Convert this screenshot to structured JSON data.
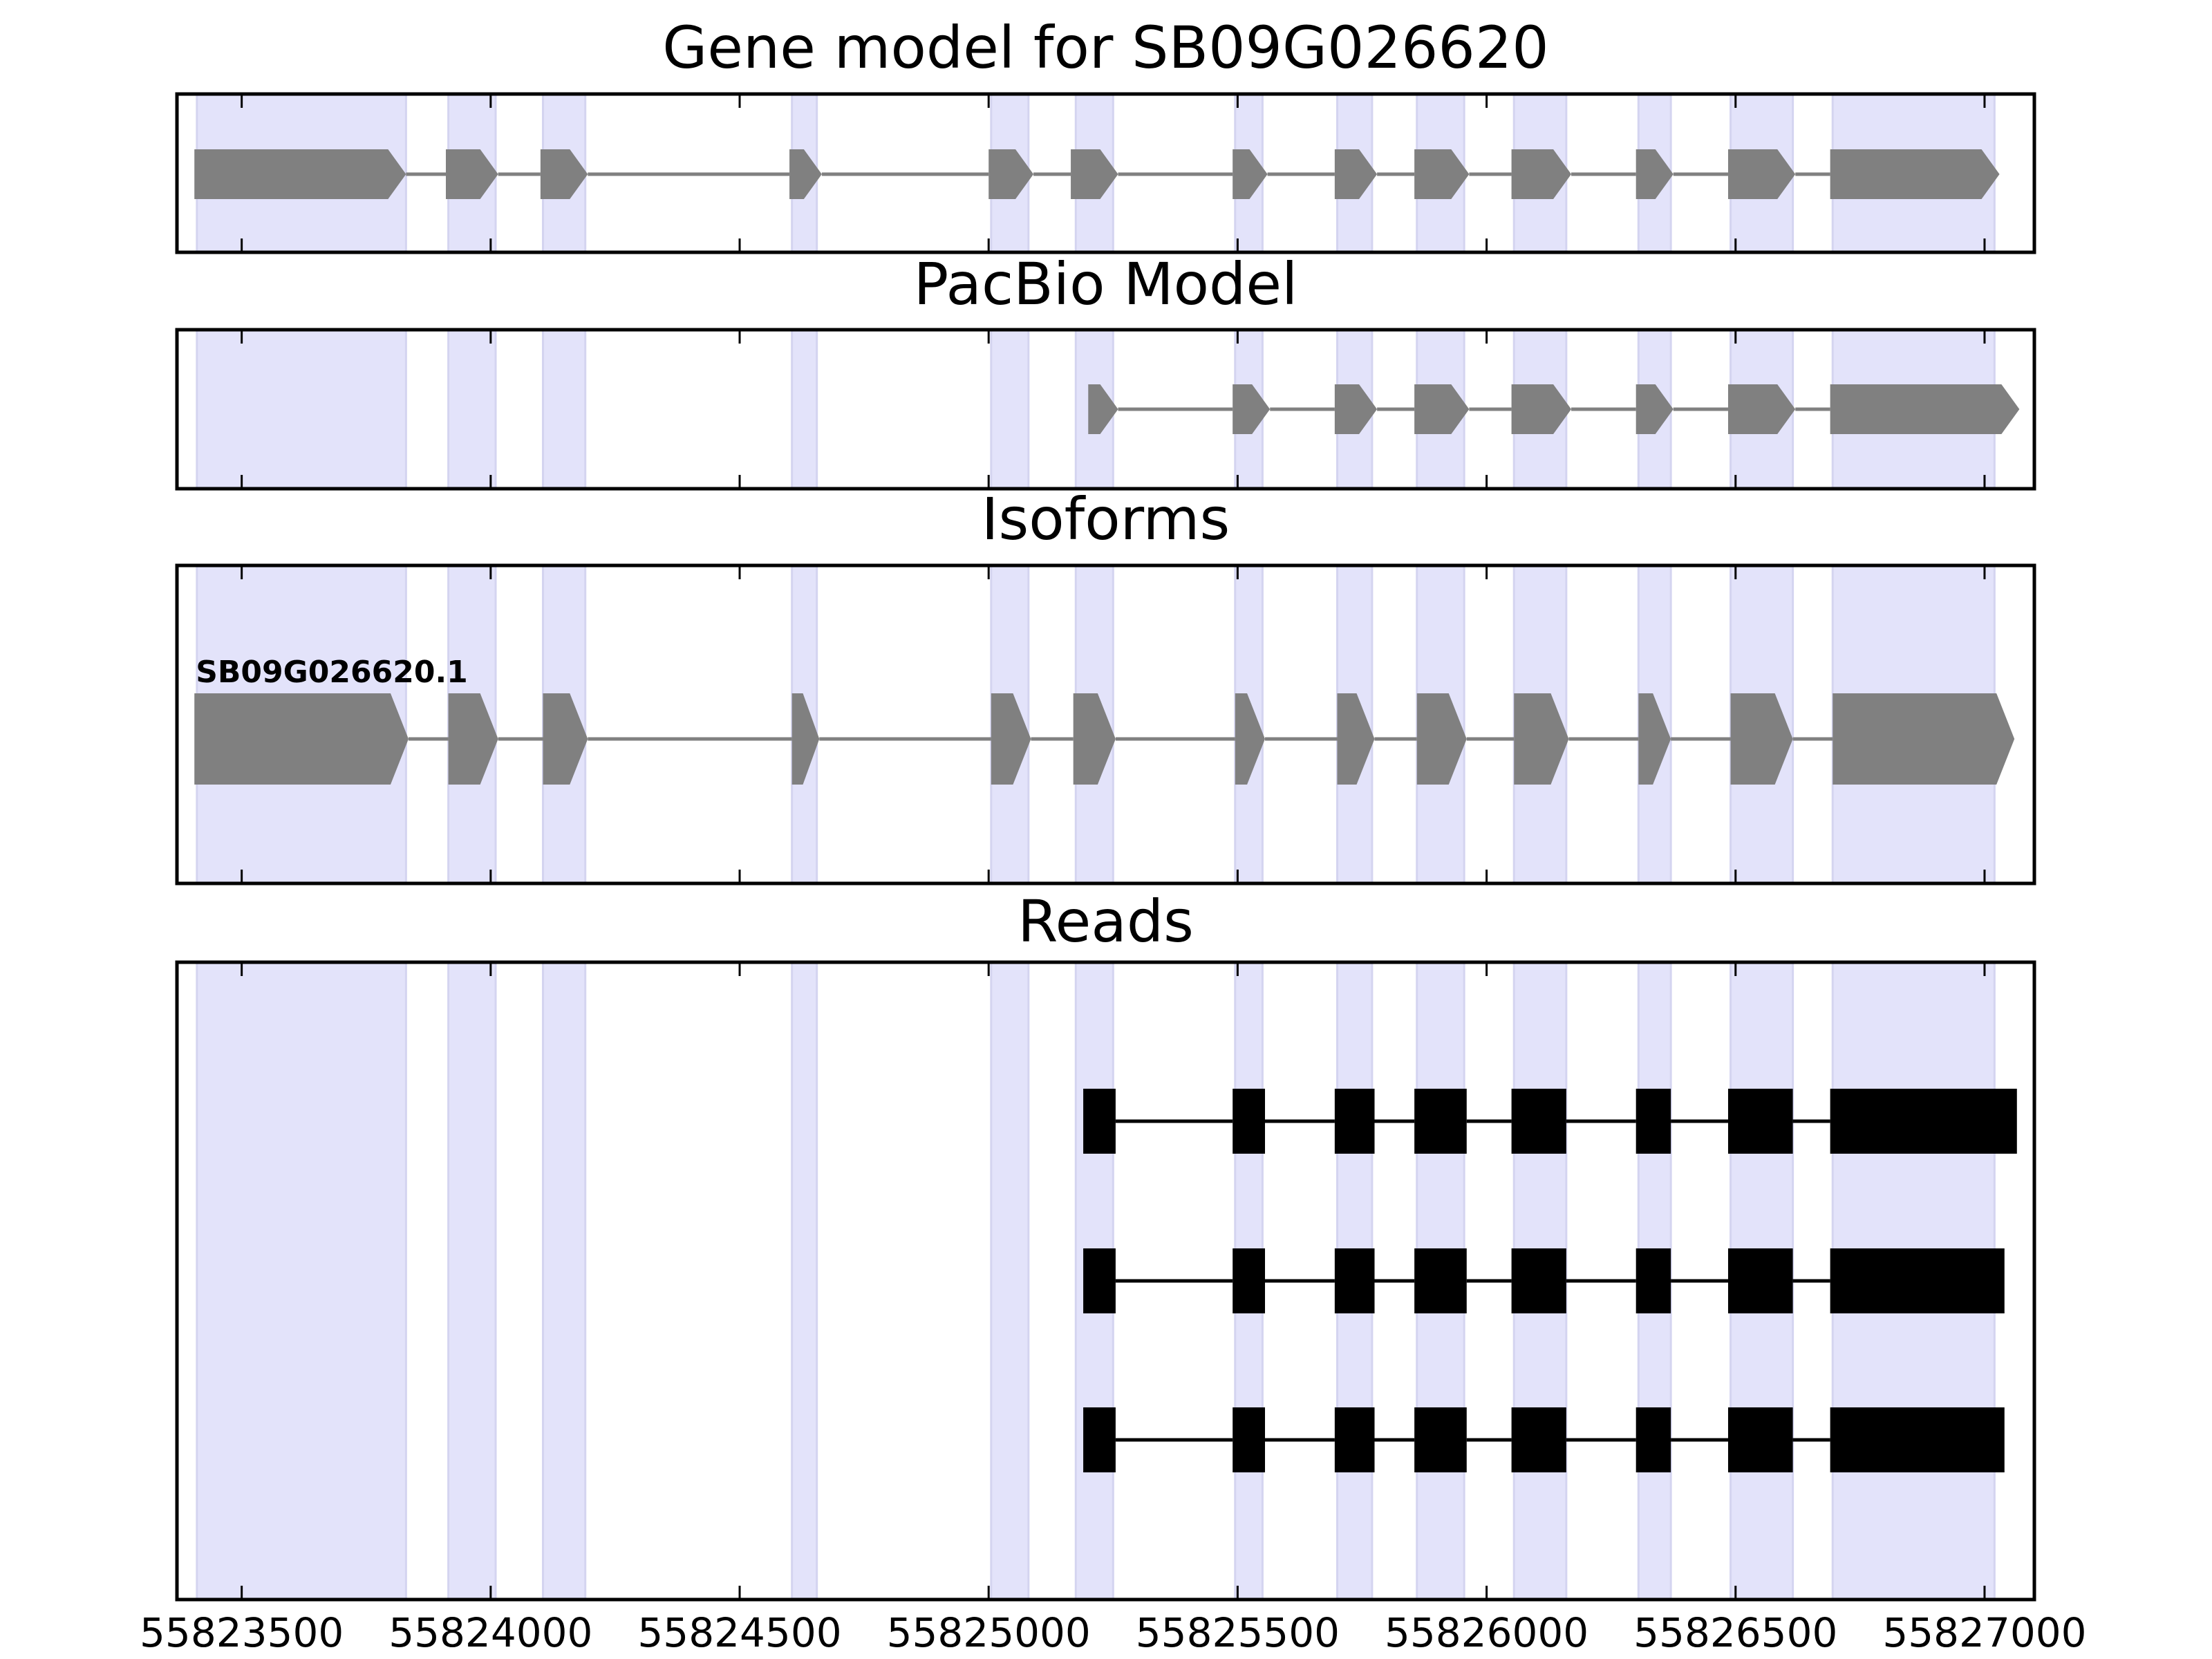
{
  "chart_data": {
    "type": "gene-track",
    "xlim": [
      55823370,
      55827100
    ],
    "xticks": [
      55823500,
      55824000,
      55824500,
      55825000,
      55825500,
      55826000,
      55826500,
      55827000
    ],
    "xtick_labels": [
      "55823500",
      "55824000",
      "55824500",
      "55825000",
      "55825500",
      "55826000",
      "55826500",
      "55827000"
    ],
    "highlight_color": "#e3e3fa",
    "highlight_regions": [
      [
        55823410,
        55823830
      ],
      [
        55823915,
        55824010
      ],
      [
        55824105,
        55824190
      ],
      [
        55824605,
        55824655
      ],
      [
        55825005,
        55825080
      ],
      [
        55825175,
        55825250
      ],
      [
        55825495,
        55825550
      ],
      [
        55825700,
        55825770
      ],
      [
        55825860,
        55825955
      ],
      [
        55826055,
        55826160
      ],
      [
        55826305,
        55826370
      ],
      [
        55826490,
        55826615
      ],
      [
        55826695,
        55827020
      ]
    ],
    "panels": [
      {
        "title": "Gene model for SB09G026620",
        "track_color": "#808080",
        "intron_color": "#808080",
        "tracks": [
          {
            "label": "",
            "shape": "arrow",
            "exons": [
              [
                55823405,
                55823830
              ],
              [
                55823910,
                55824015
              ],
              [
                55824100,
                55824195
              ],
              [
                55824600,
                55824665
              ],
              [
                55825000,
                55825090
              ],
              [
                55825165,
                55825260
              ],
              [
                55825490,
                55825560
              ],
              [
                55825695,
                55825780
              ],
              [
                55825855,
                55825965
              ],
              [
                55826050,
                55826170
              ],
              [
                55826300,
                55826375
              ],
              [
                55826485,
                55826620
              ],
              [
                55826690,
                55827030
              ]
            ]
          }
        ]
      },
      {
        "title": "PacBio Model",
        "track_color": "#808080",
        "intron_color": "#808080",
        "tracks": [
          {
            "label": "",
            "shape": "arrow",
            "exons": [
              [
                55825200,
                55825260
              ],
              [
                55825490,
                55825565
              ],
              [
                55825695,
                55825780
              ],
              [
                55825855,
                55825965
              ],
              [
                55826050,
                55826170
              ],
              [
                55826300,
                55826375
              ],
              [
                55826485,
                55826620
              ],
              [
                55826690,
                55827070
              ]
            ]
          }
        ]
      },
      {
        "title": "Isoforms",
        "track_color": "#808080",
        "intron_color": "#808080",
        "tracks": [
          {
            "label": "SB09G026620.1",
            "shape": "arrow",
            "exons": [
              [
                55823405,
                55823835
              ],
              [
                55823915,
                55824015
              ],
              [
                55824105,
                55824195
              ],
              [
                55824605,
                55824660
              ],
              [
                55825005,
                55825085
              ],
              [
                55825170,
                55825255
              ],
              [
                55825495,
                55825555
              ],
              [
                55825700,
                55825775
              ],
              [
                55825860,
                55825960
              ],
              [
                55826055,
                55826165
              ],
              [
                55826305,
                55826370
              ],
              [
                55826490,
                55826615
              ],
              [
                55826695,
                55827060
              ]
            ]
          }
        ]
      },
      {
        "title": "Reads",
        "track_color": "#000000",
        "intron_color": "#000000",
        "tracks": [
          {
            "label": "",
            "shape": "box",
            "exons": [
              [
                55825190,
                55825255
              ],
              [
                55825490,
                55825555
              ],
              [
                55825695,
                55825775
              ],
              [
                55825855,
                55825960
              ],
              [
                55826050,
                55826160
              ],
              [
                55826300,
                55826370
              ],
              [
                55826485,
                55826615
              ],
              [
                55826690,
                55827065
              ]
            ]
          },
          {
            "label": "",
            "shape": "box",
            "exons": [
              [
                55825190,
                55825255
              ],
              [
                55825490,
                55825555
              ],
              [
                55825695,
                55825775
              ],
              [
                55825855,
                55825960
              ],
              [
                55826050,
                55826160
              ],
              [
                55826300,
                55826370
              ],
              [
                55826485,
                55826615
              ],
              [
                55826690,
                55827040
              ]
            ]
          },
          {
            "label": "",
            "shape": "box",
            "exons": [
              [
                55825190,
                55825255
              ],
              [
                55825490,
                55825555
              ],
              [
                55825695,
                55825775
              ],
              [
                55825855,
                55825960
              ],
              [
                55826050,
                55826160
              ],
              [
                55826300,
                55826370
              ],
              [
                55826485,
                55826615
              ],
              [
                55826690,
                55827040
              ]
            ]
          }
        ]
      }
    ]
  }
}
